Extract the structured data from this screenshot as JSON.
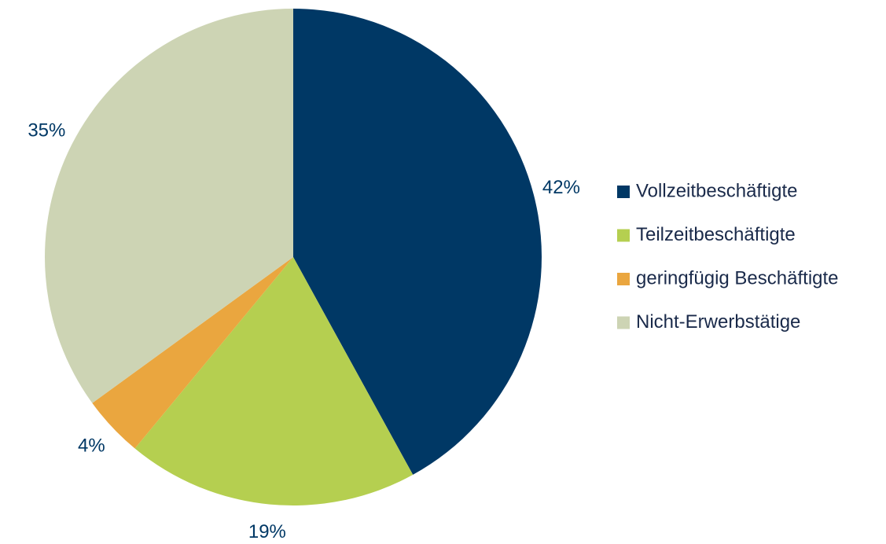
{
  "chart_data": {
    "type": "pie",
    "categories": [
      "Vollzeitbeschäftigte",
      "Teilzeitbeschäftigte",
      "geringfügig Beschäftigte",
      "Nicht-Erwerbstätige"
    ],
    "values": [
      42,
      19,
      4,
      35
    ],
    "value_labels": [
      "42%",
      "19%",
      "4%",
      "35%"
    ],
    "colors": [
      "#003865",
      "#b5cf50",
      "#eaa63f",
      "#cdd4b4"
    ],
    "legend": "right"
  }
}
